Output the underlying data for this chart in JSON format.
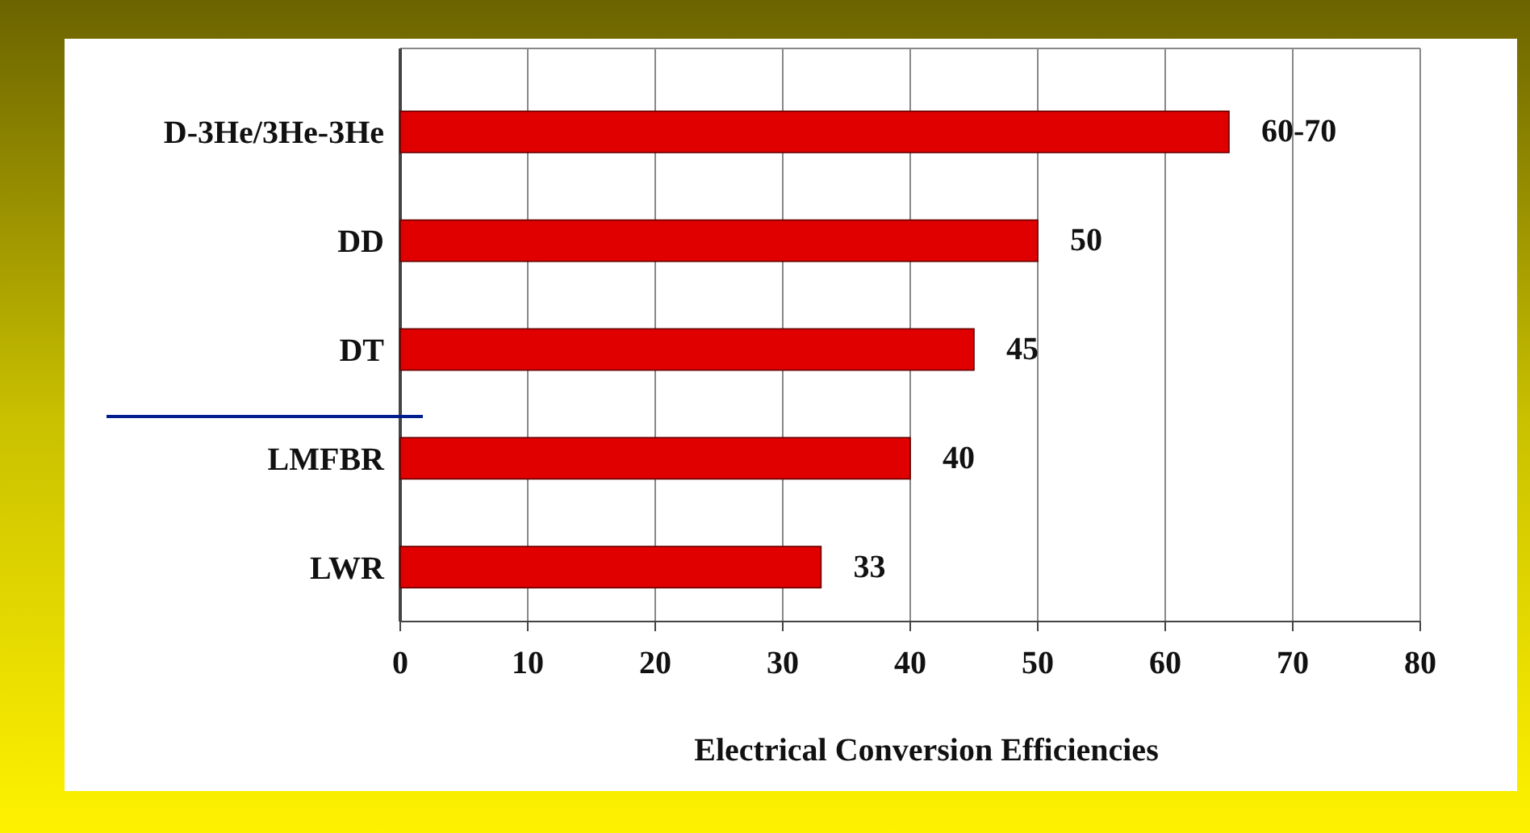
{
  "chart_data": {
    "type": "bar",
    "orientation": "horizontal",
    "xlabel": "Electrical Conversion Efficiencies",
    "categories": [
      "D-3He/3He-3He",
      "DD",
      "DT",
      "LMFBR",
      "LWR"
    ],
    "values": [
      65,
      50,
      45,
      40,
      33
    ],
    "value_labels": [
      "60-70",
      "50",
      "45",
      "40",
      "33"
    ],
    "color": "#e00000",
    "xlim": [
      0,
      80
    ],
    "xticks": [
      0,
      10,
      20,
      30,
      40,
      50,
      60,
      70,
      80
    ],
    "grid": "x"
  }
}
